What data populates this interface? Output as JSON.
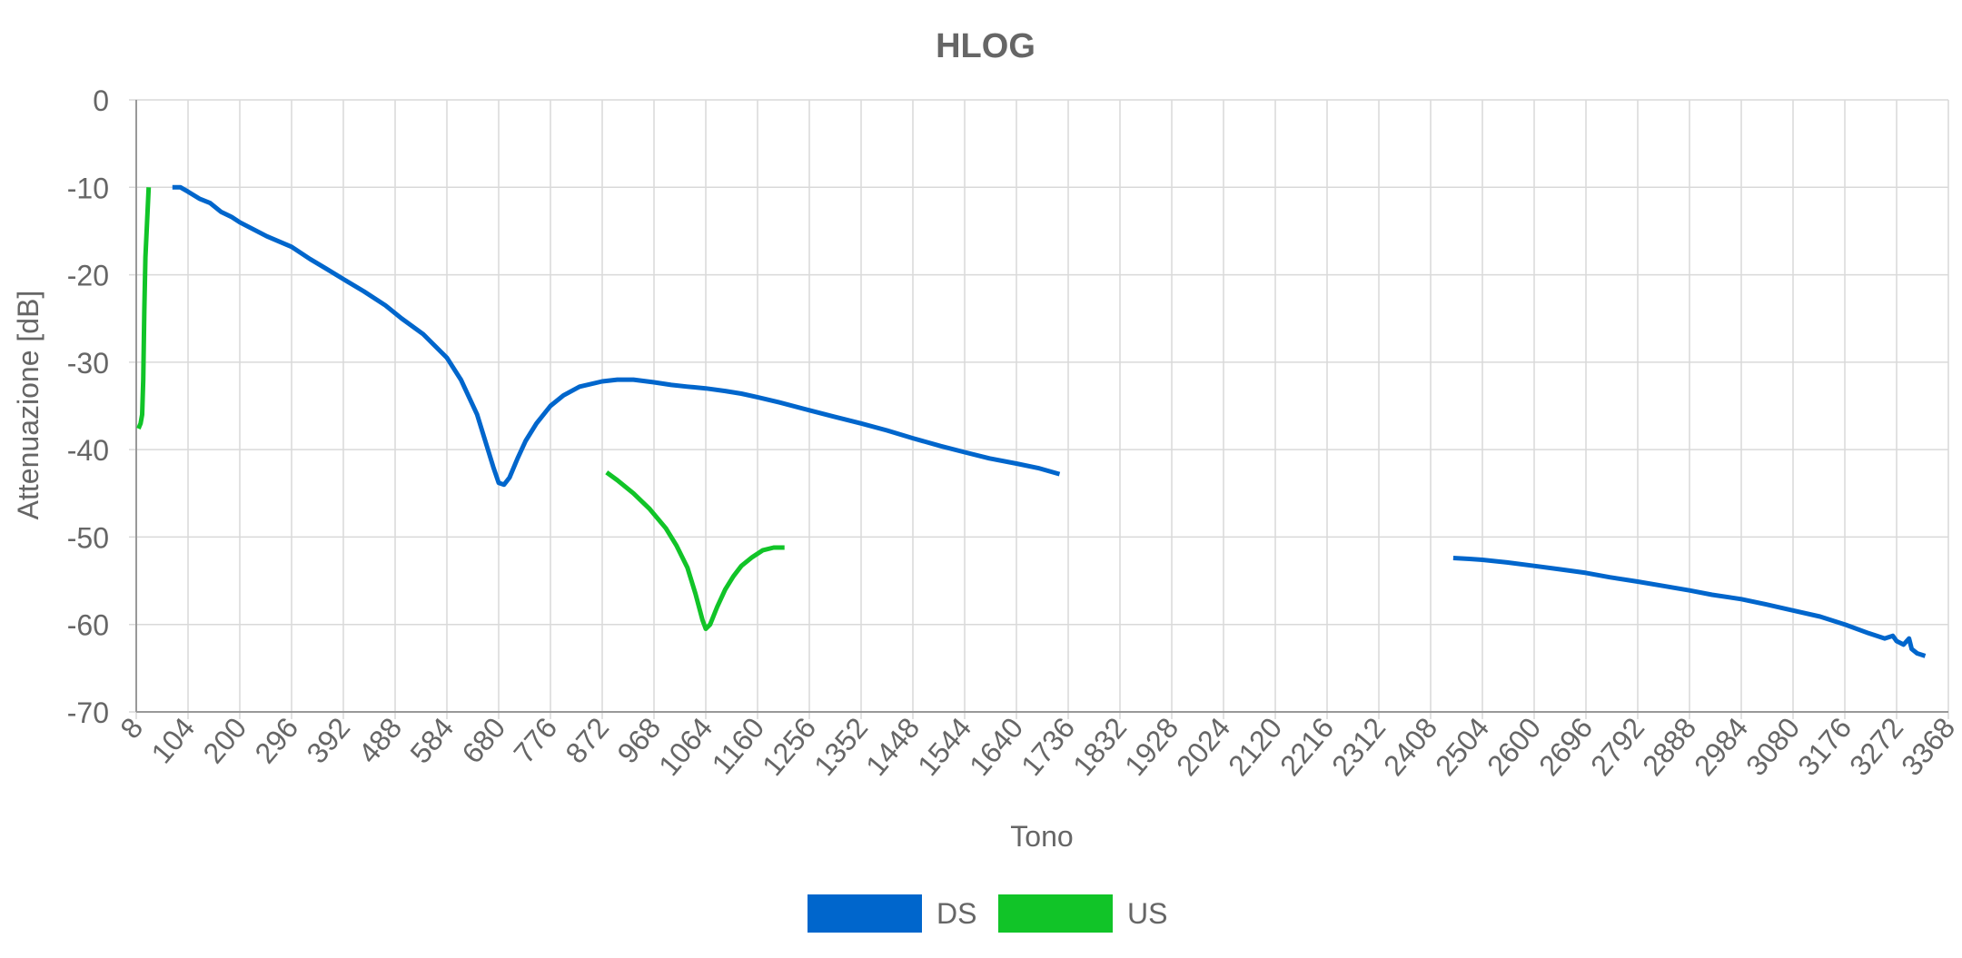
{
  "chart_data": {
    "type": "line",
    "title": "HLOG",
    "xlabel": "Tono",
    "ylabel": "Attenuazione [dB]",
    "xlim": [
      8,
      3368
    ],
    "ylim": [
      -70,
      0
    ],
    "xticks": [
      "8",
      "104",
      "200",
      "296",
      "392",
      "488",
      "584",
      "680",
      "776",
      "872",
      "968",
      "1064",
      "1160",
      "1256",
      "1352",
      "1448",
      "1544",
      "1640",
      "1736",
      "1832",
      "1928",
      "2024",
      "2120",
      "2216",
      "2312",
      "2408",
      "2504",
      "2600",
      "2696",
      "2792",
      "2888",
      "2984",
      "3080",
      "3176",
      "3272",
      "3368"
    ],
    "yticks": [
      "0",
      "-10",
      "-20",
      "-30",
      "-40",
      "-50",
      "-60",
      "-70"
    ],
    "grid": true,
    "legend_position": "bottom",
    "series": [
      {
        "name": "DS",
        "color": "#0066cc",
        "segments": [
          [
            [
              75,
              -10
            ],
            [
              90,
              -10
            ],
            [
              104,
              -10.5
            ],
            [
              125,
              -11.3
            ],
            [
              145,
              -11.8
            ],
            [
              165,
              -12.8
            ],
            [
              185,
              -13.4
            ],
            [
              200,
              -14
            ],
            [
              250,
              -15.6
            ],
            [
              296,
              -16.8
            ],
            [
              330,
              -18.2
            ],
            [
              360,
              -19.3
            ],
            [
              392,
              -20.5
            ],
            [
              430,
              -21.9
            ],
            [
              470,
              -23.5
            ],
            [
              500,
              -25
            ],
            [
              540,
              -26.8
            ],
            [
              584,
              -29.5
            ],
            [
              610,
              -32
            ],
            [
              640,
              -36
            ],
            [
              655,
              -39
            ],
            [
              670,
              -42
            ],
            [
              680,
              -43.8
            ],
            [
              690,
              -44
            ],
            [
              700,
              -43.2
            ],
            [
              715,
              -41
            ],
            [
              730,
              -39
            ],
            [
              750,
              -37
            ],
            [
              776,
              -35
            ],
            [
              800,
              -33.8
            ],
            [
              830,
              -32.8
            ],
            [
              872,
              -32.2
            ],
            [
              900,
              -32
            ],
            [
              930,
              -32
            ],
            [
              968,
              -32.3
            ],
            [
              1000,
              -32.6
            ],
            [
              1030,
              -32.8
            ],
            [
              1064,
              -33
            ],
            [
              1100,
              -33.3
            ],
            [
              1130,
              -33.6
            ],
            [
              1160,
              -34
            ],
            [
              1200,
              -34.6
            ],
            [
              1256,
              -35.5
            ],
            [
              1300,
              -36.2
            ],
            [
              1352,
              -37
            ],
            [
              1400,
              -37.8
            ],
            [
              1448,
              -38.7
            ],
            [
              1500,
              -39.6
            ],
            [
              1544,
              -40.3
            ],
            [
              1590,
              -41
            ],
            [
              1640,
              -41.6
            ],
            [
              1680,
              -42.1
            ],
            [
              1720,
              -42.8
            ]
          ],
          [
            [
              2450,
              -52.4
            ],
            [
              2480,
              -52.5
            ],
            [
              2504,
              -52.6
            ],
            [
              2550,
              -52.9
            ],
            [
              2600,
              -53.3
            ],
            [
              2650,
              -53.7
            ],
            [
              2696,
              -54.1
            ],
            [
              2740,
              -54.6
            ],
            [
              2792,
              -55.1
            ],
            [
              2840,
              -55.6
            ],
            [
              2888,
              -56.1
            ],
            [
              2930,
              -56.6
            ],
            [
              2984,
              -57.1
            ],
            [
              3030,
              -57.7
            ],
            [
              3080,
              -58.4
            ],
            [
              3130,
              -59.1
            ],
            [
              3176,
              -60
            ],
            [
              3220,
              -61
            ],
            [
              3250,
              -61.6
            ],
            [
              3265,
              -61.3
            ],
            [
              3272,
              -61.9
            ],
            [
              3285,
              -62.3
            ],
            [
              3295,
              -61.6
            ],
            [
              3300,
              -62.8
            ],
            [
              3310,
              -63.3
            ],
            [
              3325,
              -63.6
            ]
          ]
        ]
      },
      {
        "name": "US",
        "color": "#11c428",
        "segments": [
          [
            [
              12,
              -37.6
            ],
            [
              16,
              -37
            ],
            [
              19,
              -36
            ],
            [
              21,
              -32
            ],
            [
              23,
              -24
            ],
            [
              25,
              -18
            ],
            [
              28,
              -14
            ],
            [
              31,
              -10
            ]
          ],
          [
            [
              880,
              -42.6
            ],
            [
              900,
              -43.5
            ],
            [
              930,
              -45
            ],
            [
              960,
              -46.8
            ],
            [
              990,
              -49
            ],
            [
              1010,
              -51
            ],
            [
              1030,
              -53.5
            ],
            [
              1045,
              -56.5
            ],
            [
              1058,
              -59.5
            ],
            [
              1064,
              -60.5
            ],
            [
              1072,
              -60
            ],
            [
              1085,
              -58
            ],
            [
              1100,
              -56
            ],
            [
              1115,
              -54.5
            ],
            [
              1130,
              -53.3
            ],
            [
              1150,
              -52.3
            ],
            [
              1170,
              -51.5
            ],
            [
              1190,
              -51.2
            ],
            [
              1210,
              -51.2
            ]
          ]
        ]
      }
    ]
  }
}
